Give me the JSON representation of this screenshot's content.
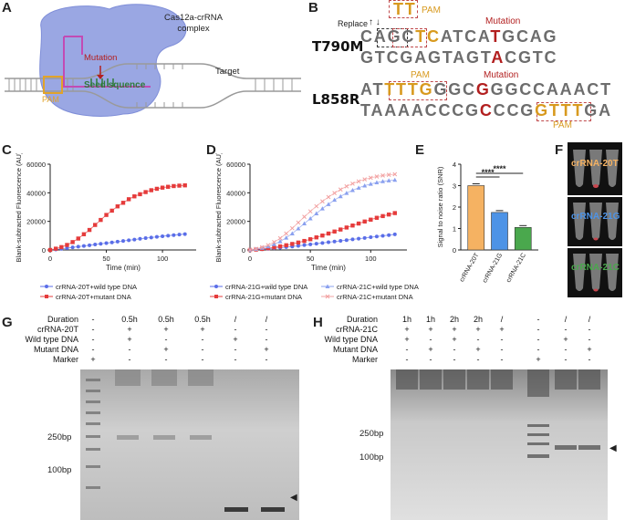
{
  "panels": {
    "A": "A",
    "B": "B",
    "C": "C",
    "D": "D",
    "E": "E",
    "F": "F",
    "G": "G",
    "H": "H"
  },
  "panelA": {
    "complex_label_1": "Cas12a-crRNA",
    "complex_label_2": "complex",
    "target": "Target",
    "mutation": "Mutation",
    "seed": "Seed squence",
    "pam": "PAM"
  },
  "panelB": {
    "rows": [
      {
        "name": "T790M",
        "top": "CAGCTCATCATGCAG",
        "bottom": "GTCGAGTAGTACGTC"
      },
      {
        "name": "L858R",
        "top": "ATTTTGGGCGGGCCAAACT",
        "bottom": "TAAAACCCGCCCGGTTTGA"
      }
    ],
    "replace": "Replace",
    "pam_top": "PAM",
    "pam_mid": "PAM",
    "pam_bottom": "PAM",
    "mutation_1": "Mutation",
    "mutation_2": "Mutation",
    "tt_box": "TT"
  },
  "chart_data": [
    {
      "panel": "C",
      "type": "scatter",
      "xlabel": "Time (min)",
      "ylabel": "Blank-subtracted Fluorescence (AU)",
      "xlim": [
        0,
        130
      ],
      "ylim": [
        0,
        60000
      ],
      "xticks": [
        "0",
        "50",
        "100"
      ],
      "yticks": [
        "0",
        "20000",
        "40000",
        "60000"
      ],
      "series": [
        {
          "name": "crRNA-20T+wild type DNA",
          "color": "#5a6ee8",
          "marker": "circle",
          "x": [
            0,
            5,
            10,
            15,
            20,
            25,
            30,
            35,
            40,
            45,
            50,
            55,
            60,
            65,
            70,
            75,
            80,
            85,
            90,
            95,
            100,
            105,
            110,
            115,
            120
          ],
          "y": [
            0,
            300,
            800,
            1300,
            1800,
            2300,
            2800,
            3300,
            3800,
            4300,
            4800,
            5300,
            5800,
            6300,
            6800,
            7300,
            7800,
            8300,
            8700,
            9200,
            9600,
            10000,
            10400,
            10800,
            11100
          ]
        },
        {
          "name": "crRNA-20T+mutant DNA",
          "color": "#e53b3b",
          "marker": "square",
          "x": [
            0,
            5,
            10,
            15,
            20,
            25,
            30,
            35,
            40,
            45,
            50,
            55,
            60,
            65,
            70,
            75,
            80,
            85,
            90,
            95,
            100,
            105,
            110,
            115,
            120
          ],
          "y": [
            0,
            900,
            2000,
            3500,
            5500,
            8000,
            11000,
            14000,
            17500,
            21000,
            24500,
            27500,
            30500,
            33000,
            35500,
            37500,
            39000,
            40500,
            41800,
            42800,
            43600,
            44200,
            44700,
            45000,
            45200
          ]
        }
      ]
    },
    {
      "panel": "D",
      "type": "scatter",
      "xlabel": "Time (min)",
      "ylabel": "Blank-subtracted Fluorescence (AU)",
      "xlim": [
        0,
        130
      ],
      "ylim": [
        0,
        60000
      ],
      "xticks": [
        "0",
        "50",
        "100"
      ],
      "yticks": [
        "0",
        "20000",
        "40000",
        "60000"
      ],
      "series": [
        {
          "name": "crRNA-21G+wild type DNA",
          "color": "#5a6ee8",
          "marker": "circle",
          "x": [
            0,
            5,
            10,
            15,
            20,
            25,
            30,
            35,
            40,
            45,
            50,
            55,
            60,
            65,
            70,
            75,
            80,
            85,
            90,
            95,
            100,
            105,
            110,
            115,
            120
          ],
          "y": [
            0,
            200,
            500,
            800,
            1200,
            1600,
            2000,
            2400,
            2900,
            3400,
            3900,
            4400,
            4900,
            5400,
            5900,
            6400,
            6900,
            7400,
            7900,
            8400,
            8900,
            9400,
            9900,
            10400,
            10900
          ]
        },
        {
          "name": "crRNA-21G+mutant DNA",
          "color": "#e53b3b",
          "marker": "square",
          "x": [
            0,
            5,
            10,
            15,
            20,
            25,
            30,
            35,
            40,
            45,
            50,
            55,
            60,
            65,
            70,
            75,
            80,
            85,
            90,
            95,
            100,
            105,
            110,
            115,
            120
          ],
          "y": [
            0,
            300,
            700,
            1200,
            1800,
            2500,
            3300,
            4200,
            5200,
            6300,
            7500,
            8800,
            10100,
            11500,
            12900,
            14300,
            15700,
            17100,
            18500,
            19900,
            21200,
            22500,
            23700,
            24800,
            25800
          ]
        },
        {
          "name": "crRNA-21C+wild type DNA",
          "color": "#8aa0ef",
          "marker": "triangle",
          "x": [
            0,
            5,
            10,
            15,
            20,
            25,
            30,
            35,
            40,
            45,
            50,
            55,
            60,
            65,
            70,
            75,
            80,
            85,
            90,
            95,
            100,
            105,
            110,
            115,
            120
          ],
          "y": [
            0,
            600,
            1400,
            2500,
            4000,
            6000,
            8500,
            11500,
            15000,
            18500,
            22000,
            25500,
            29000,
            32000,
            35000,
            37500,
            39800,
            41800,
            43500,
            45000,
            46200,
            47200,
            48000,
            48600,
            49000
          ]
        },
        {
          "name": "crRNA-21C+mutant DNA",
          "color": "#f2a0a0",
          "marker": "x",
          "x": [
            0,
            5,
            10,
            15,
            20,
            25,
            30,
            35,
            40,
            45,
            50,
            55,
            60,
            65,
            70,
            75,
            80,
            85,
            90,
            95,
            100,
            105,
            110,
            115,
            120
          ],
          "y": [
            0,
            800,
            1900,
            3400,
            5500,
            8200,
            11500,
            15200,
            19200,
            23200,
            27000,
            30600,
            34000,
            37000,
            39800,
            42300,
            44500,
            46400,
            48000,
            49400,
            50500,
            51400,
            52100,
            52600,
            53000
          ]
        }
      ]
    },
    {
      "panel": "E",
      "type": "bar",
      "ylabel": "Signal to noise ratio (SNR)",
      "ylim": [
        0,
        4
      ],
      "yticks": [
        "0",
        "1",
        "2",
        "3",
        "4"
      ],
      "categories": [
        "crRNA-20T",
        "crRNA-21G",
        "crRNA-21C"
      ],
      "values": [
        3.0,
        1.75,
        1.05
      ],
      "colors": [
        "#f5b262",
        "#4d93e6",
        "#4aa84d"
      ],
      "significance": [
        "****",
        "****"
      ]
    }
  ],
  "panelF": {
    "labels": [
      {
        "text": "crRNA-20T",
        "color": "#f5b262"
      },
      {
        "text": "crRNA-21G",
        "color": "#4d93e6"
      },
      {
        "text": "crRNA-21C",
        "color": "#4aa84d"
      }
    ]
  },
  "panelG": {
    "row_labels": [
      "Duration",
      "crRNA-20T",
      "Wild type DNA",
      "Mutant DNA",
      "Marker"
    ],
    "columns": [
      [
        "-",
        "-",
        "-",
        "-",
        "+"
      ],
      [
        "0.5h",
        "+",
        "+",
        "-",
        "-"
      ],
      [
        "0.5h",
        "+",
        "-",
        "+",
        "-"
      ],
      [
        "0.5h",
        "+",
        "-",
        "-",
        "-"
      ],
      [
        "/",
        "-",
        "+",
        "-",
        "-"
      ],
      [
        "/",
        "-",
        "-",
        "+",
        "-"
      ]
    ],
    "markers": [
      "250bp",
      "100bp"
    ],
    "arrow": "◀"
  },
  "panelH": {
    "row_labels": [
      "Duration",
      "crRNA-21C",
      "Wild type DNA",
      "Mutant DNA",
      "Marker"
    ],
    "columns": [
      [
        "1h",
        "+",
        "+",
        "-",
        "-"
      ],
      [
        "1h",
        "+",
        "-",
        "+",
        "-"
      ],
      [
        "2h",
        "+",
        "+",
        "-",
        "-"
      ],
      [
        "2h",
        "+",
        "-",
        "+",
        "-"
      ],
      [
        "/",
        "+",
        "-",
        "-",
        "-"
      ],
      [
        "-",
        "-",
        "-",
        "-",
        "+"
      ],
      [
        "/",
        "-",
        "+",
        "-",
        "-"
      ],
      [
        "/",
        "-",
        "-",
        "+",
        "-"
      ]
    ],
    "markers": [
      "250bp",
      "100bp"
    ],
    "arrow": "◀"
  }
}
